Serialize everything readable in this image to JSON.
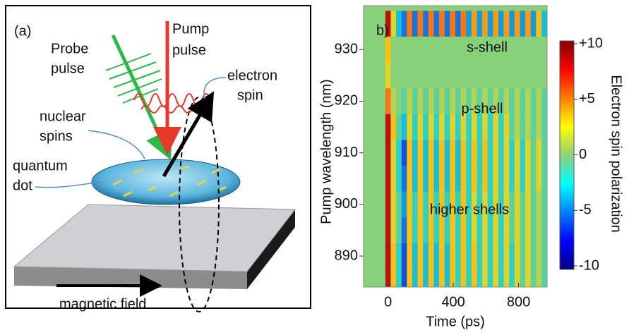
{
  "diagram": {
    "panel_label": "(a)",
    "probe": [
      "Probe",
      "pulse"
    ],
    "pump": [
      "Pump",
      "pulse"
    ],
    "electron": [
      "electron",
      "spin"
    ],
    "nuclear": [
      "nuclear",
      "spins"
    ],
    "dot": [
      "quantum",
      "dot"
    ],
    "field": "magnetic field"
  },
  "chart_data": {
    "type": "heatmap",
    "panel_label": "b)",
    "xlabel": "Time (ps)",
    "ylabel": "Pump wavelength (nm)",
    "zlabel": "Electron spin polarization",
    "annotations": [
      "s-shell",
      "p-shell",
      "higher shells"
    ],
    "x": [
      0,
      33,
      66,
      99,
      132,
      165,
      198,
      231,
      264,
      297,
      330,
      363,
      396,
      429,
      462,
      495,
      528,
      561,
      594,
      627,
      660,
      693,
      726,
      759,
      792,
      825,
      858,
      891,
      924,
      957
    ],
    "y": [
      935,
      930,
      925,
      920,
      915,
      910,
      905,
      900,
      895,
      890,
      885
    ],
    "z": [
      [
        9,
        2,
        -3,
        -5,
        5,
        -5,
        5,
        -5,
        5,
        -5,
        5,
        -5,
        5,
        -5,
        5,
        -4,
        4,
        -4,
        4,
        -4,
        4,
        -4,
        4,
        -4,
        4,
        -4,
        4,
        -4,
        3,
        -3
      ],
      [
        3,
        0,
        0,
        0,
        0,
        0,
        0,
        0,
        0,
        0,
        0,
        0,
        0,
        0,
        0,
        0,
        0,
        0,
        0,
        0,
        0,
        0,
        0,
        0,
        0,
        0,
        0,
        0,
        0,
        0
      ],
      [
        2,
        0,
        0,
        0,
        0,
        0,
        0,
        0,
        0,
        0,
        0,
        0,
        0,
        0,
        0,
        0,
        0,
        0,
        0,
        0,
        0,
        0,
        0,
        0,
        0,
        0,
        0,
        0,
        0,
        0
      ],
      [
        5,
        1,
        0,
        -1,
        1,
        -1,
        1,
        -1,
        1,
        -1,
        1,
        -1,
        1,
        -1,
        1,
        -1,
        1,
        -1,
        1,
        -1,
        1,
        -1,
        1,
        -1,
        1,
        -1,
        1,
        -1,
        1,
        -1
      ],
      [
        9,
        3,
        -1,
        -3,
        2,
        -2,
        2,
        -2,
        2,
        -2,
        2,
        -2,
        2,
        -2,
        2,
        -2,
        2,
        -2,
        2,
        -2,
        2,
        -2,
        2,
        -1,
        1,
        -1,
        1,
        -1,
        1,
        -1
      ],
      [
        9,
        2,
        -2,
        -6,
        3,
        -3,
        3,
        -3,
        3,
        -3,
        3,
        -3,
        3,
        -3,
        3,
        -2,
        3,
        -2,
        3,
        -2,
        2,
        -2,
        2,
        -2,
        2,
        -2,
        2,
        -1,
        2,
        -1
      ],
      [
        9,
        2,
        -2,
        -5,
        3,
        -3,
        3,
        -3,
        3,
        -3,
        3,
        -3,
        3,
        -3,
        3,
        -2,
        3,
        -2,
        3,
        -2,
        2,
        -2,
        2,
        -2,
        2,
        -2,
        2,
        -1,
        2,
        -1
      ],
      [
        9,
        2,
        -1,
        -4,
        3,
        -2,
        3,
        -2,
        3,
        -2,
        3,
        -2,
        3,
        -2,
        3,
        -2,
        2,
        -2,
        2,
        -2,
        2,
        -2,
        2,
        -1,
        2,
        -1,
        2,
        -1,
        1,
        -1
      ],
      [
        9,
        2,
        -1,
        -5,
        3,
        -2,
        3,
        -2,
        3,
        -2,
        3,
        -2,
        3,
        -2,
        3,
        -2,
        2,
        -2,
        2,
        -2,
        2,
        -2,
        2,
        -1,
        2,
        -1,
        2,
        -1,
        1,
        -1
      ],
      [
        9,
        3,
        -2,
        -6,
        3,
        -3,
        3,
        -3,
        3,
        -3,
        3,
        -3,
        3,
        -2,
        3,
        -2,
        3,
        -2,
        2,
        -2,
        2,
        -2,
        2,
        -2,
        2,
        -1,
        2,
        -1,
        1,
        -1
      ],
      [
        9,
        3,
        -2,
        -6,
        3,
        -3,
        3,
        -3,
        3,
        -3,
        3,
        -3,
        3,
        -2,
        3,
        -2,
        3,
        -2,
        2,
        -2,
        2,
        -2,
        2,
        -2,
        2,
        -1,
        2,
        -1,
        1,
        -1
      ]
    ],
    "xlim": [
      -150,
      975
    ],
    "ylim": [
      884,
      938.5
    ],
    "zlim": [
      -10,
      10
    ],
    "xticks": [
      0,
      400,
      800
    ],
    "yticks": [
      930,
      920,
      910,
      900,
      890
    ],
    "zticks": [
      {
        "value": 10,
        "label": "+10"
      },
      {
        "value": 5,
        "label": "+5"
      },
      0,
      -5,
      -10
    ],
    "colormap": "jet"
  }
}
